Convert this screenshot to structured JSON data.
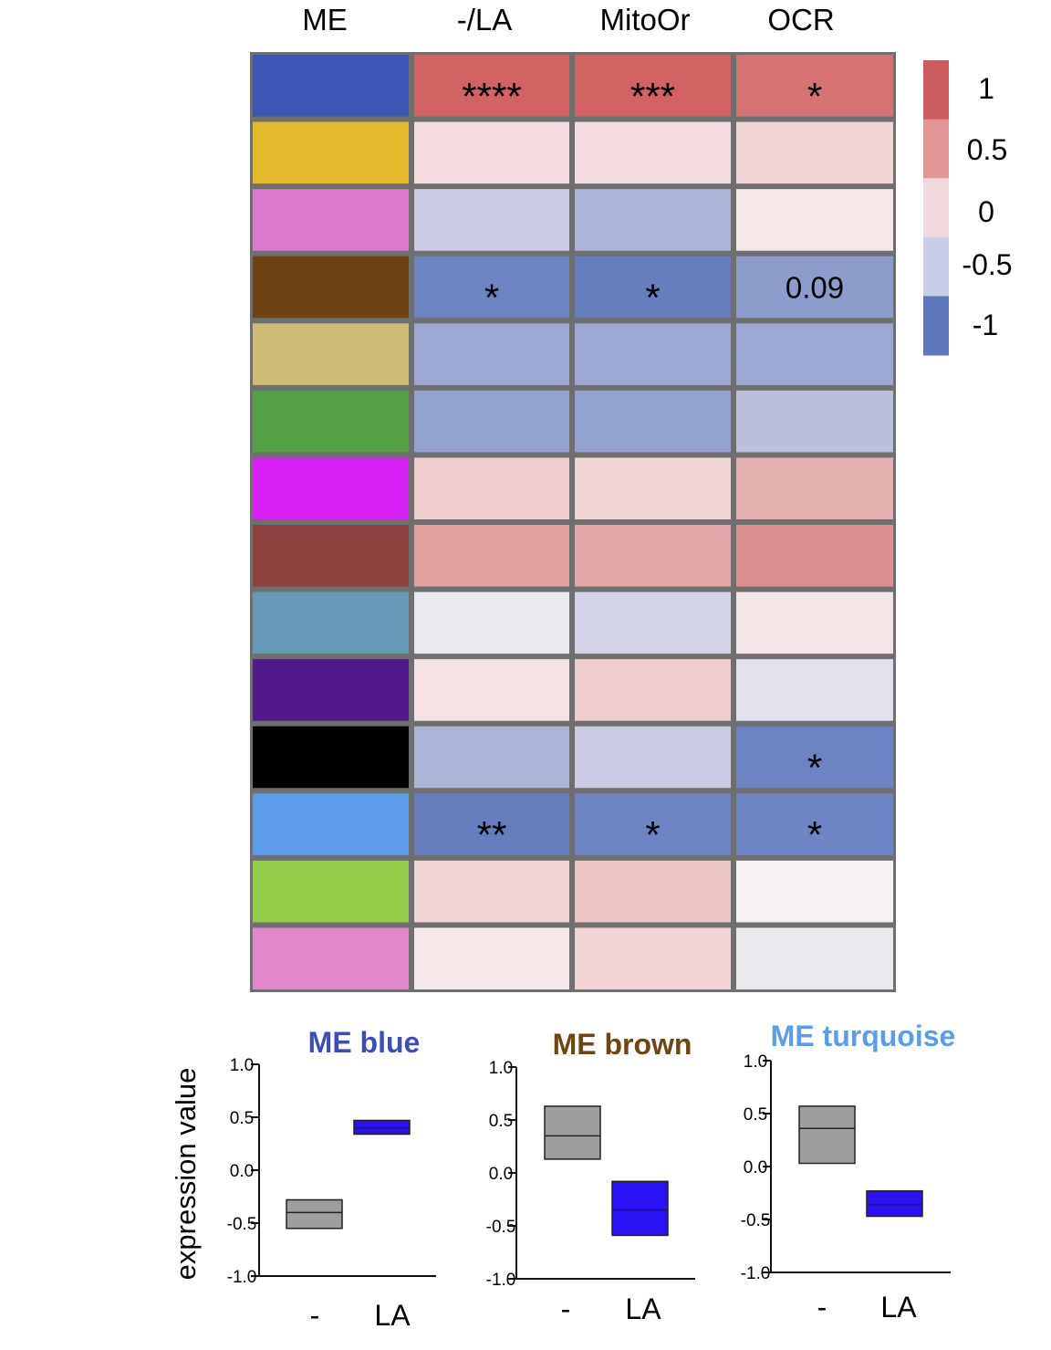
{
  "chart_data": [
    {
      "type": "heatmap",
      "column_headers": [
        "ME",
        "-/LA",
        "MitoOr",
        "OCR"
      ],
      "module_colors": [
        "#3957b3",
        "#e4b82b",
        "#db78cc",
        "#6e4213",
        "#cdbb76",
        "#54a244",
        "#d622f7",
        "#8e403d",
        "#649ab6",
        "#511a8b",
        "#000000",
        "#5a9ce9",
        "#96cb48",
        "#e288c8"
      ],
      "values": [
        [
          0.95,
          0.95,
          0.85
        ],
        [
          0.15,
          0.15,
          0.2
        ],
        [
          -0.3,
          -0.5,
          0.08
        ],
        [
          -0.9,
          -0.95,
          -0.7
        ],
        [
          -0.6,
          -0.6,
          -0.6
        ],
        [
          -0.65,
          -0.65,
          -0.4
        ],
        [
          0.25,
          0.2,
          0.45
        ],
        [
          0.55,
          0.5,
          0.65
        ],
        [
          -0.1,
          -0.25,
          0.1
        ],
        [
          0.12,
          0.25,
          -0.15
        ],
        [
          -0.5,
          -0.3,
          -0.9
        ],
        [
          -0.95,
          -0.9,
          -0.9
        ],
        [
          0.2,
          0.3,
          -0.02
        ],
        [
          0.08,
          0.2,
          -0.1
        ]
      ],
      "annotations": [
        [
          "****",
          "***",
          "*"
        ],
        [
          "",
          "",
          ""
        ],
        [
          "",
          "",
          ""
        ],
        [
          "*",
          "*",
          "0.09"
        ],
        [
          "",
          "",
          ""
        ],
        [
          "",
          "",
          ""
        ],
        [
          "",
          "",
          ""
        ],
        [
          "",
          "",
          ""
        ],
        [
          "",
          "",
          ""
        ],
        [
          "",
          "",
          ""
        ],
        [
          "",
          "",
          "*"
        ],
        [
          "**",
          "*",
          "*"
        ],
        [
          "",
          "",
          ""
        ],
        [
          "",
          "",
          ""
        ]
      ],
      "color_scale": {
        "min": -1,
        "max": 1,
        "ticks": [
          "1",
          "0.5",
          "0",
          "-0.5",
          "-1"
        ],
        "bands": [
          "#cf5b5c",
          "#e09795",
          "#f0d9dc",
          "#c8cde8",
          "#5e77bb"
        ],
        "high_color": "#cf5b5c",
        "mid_color": "#f9f3f4",
        "low_color": "#5e77bb"
      }
    },
    {
      "type": "box",
      "panels": [
        {
          "title": "ME blue",
          "title_color": "#3a4fb0",
          "ylabel": "expression value",
          "ylim": [
            -1.0,
            1.0
          ],
          "yticks": [
            "1.0",
            "0.5",
            "0.0",
            "-0.5",
            "-1.0"
          ],
          "categories": [
            "-",
            "LA"
          ],
          "boxes": [
            {
              "q1": -0.55,
              "median": -0.4,
              "q3": -0.28,
              "color": "#9e9e9e"
            },
            {
              "q1": 0.34,
              "median": 0.4,
              "q3": 0.47,
              "color": "#2a12f2"
            }
          ]
        },
        {
          "title": "ME brown",
          "title_color": "#6e4514",
          "ylabel": "",
          "ylim": [
            -1.0,
            1.0
          ],
          "yticks": [
            "1.0",
            "0.5",
            "0.0",
            "-0.5",
            "-1.0"
          ],
          "categories": [
            "-",
            "LA"
          ],
          "boxes": [
            {
              "q1": 0.13,
              "median": 0.35,
              "q3": 0.63,
              "color": "#9e9e9e"
            },
            {
              "q1": -0.59,
              "median": -0.35,
              "q3": -0.08,
              "color": "#2a12f2"
            }
          ]
        },
        {
          "title": "ME turquoise",
          "title_color": "#5b9de6",
          "ylabel": "",
          "ylim": [
            -1.0,
            1.0
          ],
          "yticks": [
            "1.0",
            "0.5",
            "0.0",
            "-0.5",
            "-1.0"
          ],
          "categories": [
            "-",
            "LA"
          ],
          "boxes": [
            {
              "q1": 0.03,
              "median": 0.36,
              "q3": 0.57,
              "color": "#9e9e9e"
            },
            {
              "q1": -0.47,
              "median": -0.36,
              "q3": -0.23,
              "color": "#2a12f2"
            }
          ]
        }
      ]
    }
  ]
}
